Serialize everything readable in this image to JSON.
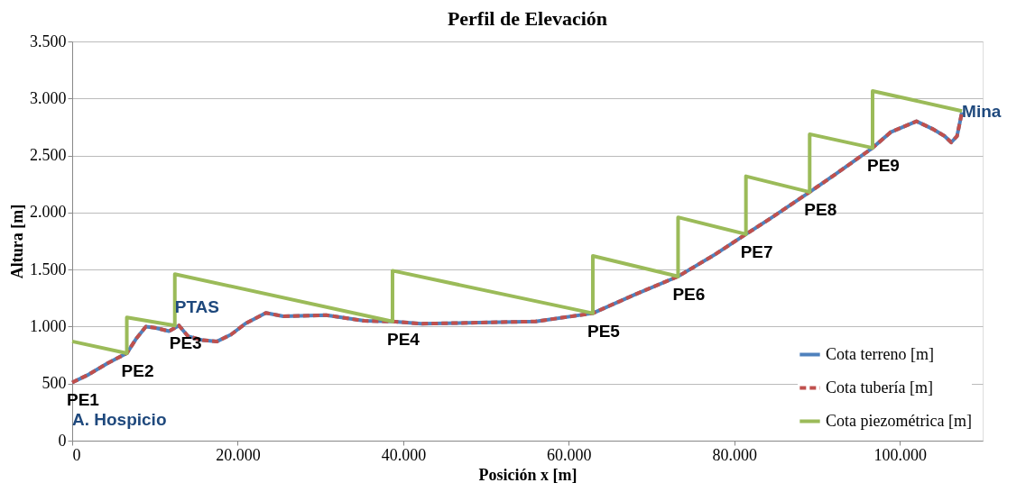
{
  "chart_data": {
    "type": "line",
    "title": "Perfil de Elevación",
    "xlabel": "Posición x [m]",
    "ylabel": "Altura [m]",
    "xlim": [
      0,
      110000
    ],
    "ylim": [
      0,
      3500
    ],
    "xticks": [
      {
        "value": 0,
        "label": "0"
      },
      {
        "value": 20000,
        "label": "20.000"
      },
      {
        "value": 40000,
        "label": "40.000"
      },
      {
        "value": 60000,
        "label": "60.000"
      },
      {
        "value": 80000,
        "label": "80.000"
      },
      {
        "value": 100000,
        "label": "100.000"
      }
    ],
    "yticks": [
      {
        "value": 0,
        "label": "0"
      },
      {
        "value": 500,
        "label": "500"
      },
      {
        "value": 1000,
        "label": "1.000"
      },
      {
        "value": 1500,
        "label": "1.500"
      },
      {
        "value": 2000,
        "label": "2.000"
      },
      {
        "value": 2500,
        "label": "2.500"
      },
      {
        "value": 3000,
        "label": "3.000"
      },
      {
        "value": 3500,
        "label": "3.500"
      }
    ],
    "grid": "y",
    "legend": "bottom right",
    "marker": "none",
    "series": [
      {
        "name": "Cota terreno [m]",
        "color": "#4f81bd",
        "line_style": "solid",
        "x": [
          0,
          2000,
          4300,
          6600,
          7700,
          8900,
          10000,
          11700,
          12900,
          14000,
          15800,
          17500,
          19200,
          20900,
          23400,
          25500,
          30700,
          35300,
          38700,
          42200,
          49100,
          56000,
          62900,
          67800,
          73200,
          77500,
          81400,
          84400,
          89100,
          92400,
          96700,
          98900,
          102000,
          103900,
          105400,
          106200,
          106900,
          107500
        ],
        "values": [
          510,
          580,
          680,
          766,
          890,
          1000,
          990,
          960,
          1010,
          915,
          880,
          870,
          930,
          1025,
          1120,
          1090,
          1100,
          1050,
          1045,
          1025,
          1035,
          1045,
          1117,
          1275,
          1440,
          1625,
          1810,
          1950,
          2180,
          2345,
          2567,
          2705,
          2800,
          2735,
          2670,
          2615,
          2670,
          2880
        ]
      },
      {
        "name": "Cota tubería [m]",
        "color": "#c0504d",
        "line_style": "dashed",
        "x": [
          0,
          2000,
          4300,
          6600,
          7700,
          8900,
          10000,
          11700,
          12900,
          14000,
          15800,
          17500,
          19200,
          20900,
          23400,
          25500,
          30700,
          35300,
          38700,
          42200,
          49100,
          56000,
          62900,
          67800,
          73200,
          77500,
          81400,
          84400,
          89100,
          92400,
          96700,
          98900,
          102000,
          103900,
          105400,
          106200,
          106900,
          107500
        ],
        "values": [
          510,
          580,
          680,
          766,
          890,
          1000,
          990,
          960,
          1010,
          915,
          880,
          870,
          930,
          1025,
          1120,
          1090,
          1100,
          1050,
          1045,
          1025,
          1035,
          1045,
          1117,
          1275,
          1440,
          1625,
          1810,
          1950,
          2180,
          2345,
          2567,
          2705,
          2800,
          2735,
          2670,
          2615,
          2670,
          2880
        ]
      },
      {
        "name": "Cota piezométrica [m]",
        "color": "#9bbb59",
        "line_style": "solid",
        "x": [
          0,
          6600,
          6600,
          12400,
          12400,
          38700,
          38700,
          62900,
          62900,
          73200,
          73200,
          81400,
          81400,
          89100,
          89100,
          96700,
          96700,
          107500
        ],
        "values": [
          870,
          766,
          1080,
          1010,
          1460,
          1045,
          1490,
          1117,
          1620,
          1440,
          1958,
          1810,
          2318,
          2180,
          2687,
          2567,
          3066,
          2890
        ]
      }
    ],
    "annotations": [
      {
        "text": "PE1",
        "x": 0,
        "y": 510
      },
      {
        "text": "A. Hospicio",
        "x": 0,
        "y": 510
      },
      {
        "text": "PE2",
        "x": 6600,
        "y": 766
      },
      {
        "text": "PE3",
        "x": 12400,
        "y": 1010
      },
      {
        "text": "PTAS",
        "x": 12400,
        "y": 1010
      },
      {
        "text": "PE4",
        "x": 38700,
        "y": 1045
      },
      {
        "text": "PE5",
        "x": 62900,
        "y": 1117
      },
      {
        "text": "PE6",
        "x": 73200,
        "y": 1440
      },
      {
        "text": "PE7",
        "x": 81400,
        "y": 1810
      },
      {
        "text": "PE8",
        "x": 89100,
        "y": 2180
      },
      {
        "text": "PE9",
        "x": 96700,
        "y": 2567
      },
      {
        "text": "Mina",
        "x": 107500,
        "y": 2880
      }
    ]
  }
}
